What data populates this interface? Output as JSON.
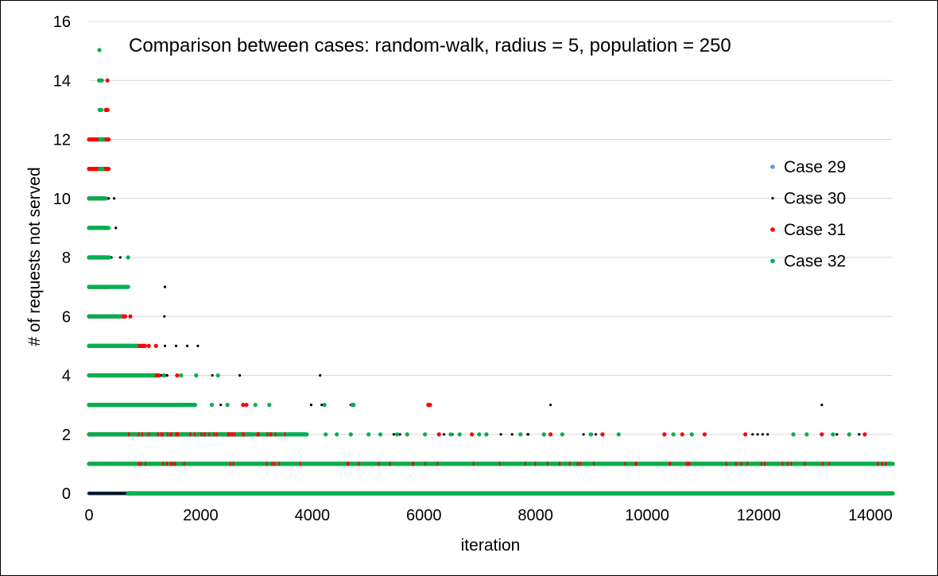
{
  "chart_data": {
    "type": "scatter",
    "title": "Comparison between cases: random-walk, radius = 5, population = 250",
    "xlabel": "iteration",
    "ylabel": "# of requests not served",
    "xlim": [
      0,
      14400
    ],
    "ylim": [
      0,
      16
    ],
    "xticks": [
      0,
      2000,
      4000,
      6000,
      8000,
      10000,
      12000,
      14000
    ],
    "yticks": [
      0,
      2,
      4,
      6,
      8,
      10,
      12,
      14,
      16
    ],
    "grid": "horizontal",
    "legend_position": "right",
    "series": [
      {
        "name": "Case 29",
        "color": "#5b9bd5",
        "segments": [
          {
            "y": 0,
            "x_from": 0,
            "x_to": 750
          }
        ],
        "points": []
      },
      {
        "name": "Case 30",
        "color": "#000000",
        "segments": [
          {
            "y": 0,
            "x_from": 0,
            "x_to": 14400
          },
          {
            "y": 1,
            "x_from": 0,
            "x_to": 14400
          },
          {
            "y": 2,
            "x_from": 0,
            "x_to": 2300
          },
          {
            "y": 3,
            "x_from": 0,
            "x_to": 1600
          },
          {
            "y": 4,
            "x_from": 0,
            "x_to": 1400
          },
          {
            "y": 5,
            "x_from": 0,
            "x_to": 900
          },
          {
            "y": 6,
            "x_from": 0,
            "x_to": 600
          },
          {
            "y": 7,
            "x_from": 0,
            "x_to": 500
          },
          {
            "y": 8,
            "x_from": 0,
            "x_to": 400
          },
          {
            "y": 9,
            "x_from": 0,
            "x_to": 350
          },
          {
            "y": 10,
            "x_from": 0,
            "x_to": 350
          },
          {
            "y": 11,
            "x_from": 0,
            "x_to": 300
          },
          {
            "y": 12,
            "x_from": 0,
            "x_to": 300
          }
        ],
        "points": [
          [
            1360,
            7
          ],
          [
            1350,
            6
          ],
          [
            1360,
            5
          ],
          [
            1560,
            5
          ],
          [
            1760,
            5
          ],
          [
            1950,
            5
          ],
          [
            2210,
            4
          ],
          [
            2700,
            4
          ],
          [
            4140,
            4
          ],
          [
            3980,
            3
          ],
          [
            4170,
            3
          ],
          [
            4690,
            3
          ],
          [
            8270,
            3
          ],
          [
            13130,
            3
          ],
          [
            2360,
            3
          ],
          [
            2770,
            3
          ],
          [
            5460,
            2
          ],
          [
            5570,
            2
          ],
          [
            6360,
            2
          ],
          [
            6510,
            2
          ],
          [
            7380,
            2
          ],
          [
            7580,
            2
          ],
          [
            7860,
            2
          ],
          [
            7870,
            2
          ],
          [
            8860,
            2
          ],
          [
            9010,
            2
          ],
          [
            9080,
            2
          ],
          [
            11890,
            2
          ],
          [
            11980,
            2
          ],
          [
            12070,
            2
          ],
          [
            12160,
            2
          ],
          [
            13400,
            2
          ],
          [
            13800,
            2
          ],
          [
            450,
            10
          ],
          [
            480,
            9
          ],
          [
            560,
            8
          ],
          [
            590,
            6
          ],
          [
            630,
            7
          ]
        ]
      },
      {
        "name": "Case 31",
        "color": "#ff0000",
        "segments": [
          {
            "y": 0,
            "x_from": 700,
            "x_to": 14400
          },
          {
            "y": 1,
            "x_from": 0,
            "x_to": 14400
          },
          {
            "y": 2,
            "x_from": 0,
            "x_to": 2900
          },
          {
            "y": 3,
            "x_from": 0,
            "x_to": 1700
          },
          {
            "y": 4,
            "x_from": 0,
            "x_to": 1250
          },
          {
            "y": 5,
            "x_from": 0,
            "x_to": 1000
          },
          {
            "y": 6,
            "x_from": 0,
            "x_to": 650
          },
          {
            "y": 7,
            "x_from": 0,
            "x_to": 350
          },
          {
            "y": 8,
            "x_from": 0,
            "x_to": 300
          },
          {
            "y": 9,
            "x_from": 0,
            "x_to": 300
          },
          {
            "y": 10,
            "x_from": 0,
            "x_to": 280
          },
          {
            "y": 11,
            "x_from": 0,
            "x_to": 350
          },
          {
            "y": 12,
            "x_from": 0,
            "x_to": 350
          },
          {
            "y": 13,
            "x_from": 300,
            "x_to": 330
          }
        ],
        "points": [
          [
            330,
            14
          ],
          [
            330,
            13
          ],
          [
            1070,
            5
          ],
          [
            1200,
            5
          ],
          [
            1580,
            4
          ],
          [
            2760,
            3
          ],
          [
            2820,
            3
          ],
          [
            6080,
            3
          ],
          [
            6110,
            3
          ],
          [
            6270,
            2
          ],
          [
            6860,
            2
          ],
          [
            8270,
            2
          ],
          [
            9200,
            2
          ],
          [
            10310,
            2
          ],
          [
            10630,
            2
          ],
          [
            11030,
            2
          ],
          [
            11760,
            2
          ],
          [
            13130,
            2
          ],
          [
            13900,
            2
          ],
          [
            740,
            6
          ],
          [
            780,
            4
          ],
          [
            1080,
            4
          ]
        ]
      },
      {
        "name": "Case 32",
        "color": "#00b050",
        "segments": [
          {
            "y": 0,
            "x_from": 700,
            "x_to": 14400
          },
          {
            "y": 1,
            "x_from": 0,
            "x_to": 14400
          },
          {
            "y": 2,
            "x_from": 0,
            "x_to": 3900
          },
          {
            "y": 3,
            "x_from": 0,
            "x_to": 1900
          },
          {
            "y": 4,
            "x_from": 0,
            "x_to": 1150
          },
          {
            "y": 5,
            "x_from": 0,
            "x_to": 850
          },
          {
            "y": 6,
            "x_from": 0,
            "x_to": 560
          },
          {
            "y": 7,
            "x_from": 0,
            "x_to": 700
          },
          {
            "y": 8,
            "x_from": 0,
            "x_to": 360
          },
          {
            "y": 9,
            "x_from": 0,
            "x_to": 350
          },
          {
            "y": 10,
            "x_from": 0,
            "x_to": 300
          },
          {
            "y": 11,
            "x_from": 200,
            "x_to": 240
          },
          {
            "y": 12,
            "x_from": 200,
            "x_to": 250
          },
          {
            "y": 13,
            "x_from": 190,
            "x_to": 220
          },
          {
            "y": 14,
            "x_from": 180,
            "x_to": 230
          }
        ],
        "points": [
          [
            700,
            8
          ],
          [
            650,
            7
          ],
          [
            1340,
            4
          ],
          [
            1650,
            4
          ],
          [
            1920,
            4
          ],
          [
            2310,
            4
          ],
          [
            2200,
            3
          ],
          [
            2480,
            3
          ],
          [
            2980,
            3
          ],
          [
            3230,
            3
          ],
          [
            4720,
            3
          ],
          [
            4740,
            3
          ],
          [
            4220,
            3
          ],
          [
            4240,
            2
          ],
          [
            4440,
            2
          ],
          [
            4690,
            2
          ],
          [
            5010,
            2
          ],
          [
            5220,
            2
          ],
          [
            5520,
            2
          ],
          [
            5700,
            2
          ],
          [
            6020,
            2
          ],
          [
            6480,
            2
          ],
          [
            6640,
            2
          ],
          [
            6990,
            2
          ],
          [
            7120,
            2
          ],
          [
            7730,
            2
          ],
          [
            8150,
            2
          ],
          [
            8480,
            2
          ],
          [
            8990,
            2
          ],
          [
            9490,
            2
          ],
          [
            10470,
            2
          ],
          [
            10800,
            2
          ],
          [
            12620,
            2
          ],
          [
            12860,
            2
          ],
          [
            13330,
            2
          ],
          [
            13620,
            2
          ],
          [
            14370,
            1
          ],
          [
            410,
            1
          ],
          [
            1590,
            2
          ],
          [
            1480,
            3
          ],
          [
            930,
            4
          ],
          [
            1360,
            3
          ]
        ]
      }
    ]
  }
}
